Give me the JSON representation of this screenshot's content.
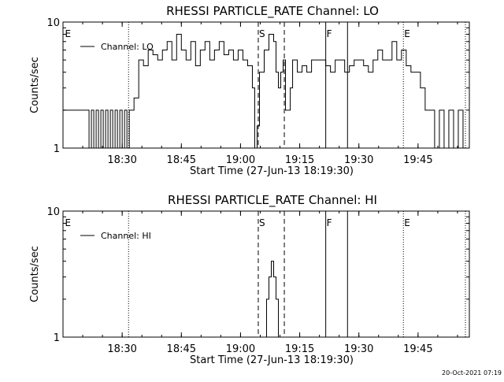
{
  "colors": {
    "background": "#ffffff",
    "foreground": "#000000"
  },
  "footer": {
    "timestamp": "20-Oct-2021 07:19"
  },
  "chart_data": [
    {
      "type": "line",
      "title": "RHESSI PARTICLE_RATE Channel: LO",
      "xlabel": "Start Time (27-Jun-13 18:19:30)",
      "ylabel": "Counts/sec",
      "yscale": "log",
      "ylim": [
        1,
        10
      ],
      "xlim_minutes": [
        18.25,
        19.9667
      ],
      "x_ticks": [
        {
          "value": 18.5,
          "label": "18:30"
        },
        {
          "value": 18.75,
          "label": "18:45"
        },
        {
          "value": 19.0,
          "label": "19:00"
        },
        {
          "value": 19.25,
          "label": "19:15"
        },
        {
          "value": 19.5,
          "label": "19:30"
        },
        {
          "value": 19.75,
          "label": "19:45"
        }
      ],
      "y_ticks": [
        {
          "value": 1,
          "label": "1"
        },
        {
          "value": 10,
          "label": "10"
        }
      ],
      "legend": {
        "text": "Channel: LO",
        "placement": "top-left"
      },
      "markers": [
        {
          "time": 18.255,
          "label": "E",
          "style": "none"
        },
        {
          "time": 18.527,
          "label": "",
          "style": "dotted"
        },
        {
          "time": 19.075,
          "label": "S",
          "style": "dashed"
        },
        {
          "time": 19.185,
          "label": "",
          "style": "dashed"
        },
        {
          "time": 19.36,
          "label": "F",
          "style": "solid"
        },
        {
          "time": 19.452,
          "label": "",
          "style": "solid"
        },
        {
          "time": 19.688,
          "label": "E",
          "style": "dotted"
        },
        {
          "time": 19.95,
          "label": "",
          "style": "dotted"
        }
      ],
      "series": [
        {
          "x": [
            18.25,
            18.35,
            18.36,
            18.37,
            18.38,
            18.39,
            18.4,
            18.41,
            18.42,
            18.43,
            18.44,
            18.45,
            18.46,
            18.47,
            18.48,
            18.49,
            18.5,
            18.51,
            18.52,
            18.53,
            18.54,
            18.55,
            18.57,
            18.59,
            18.61,
            18.63,
            18.65,
            18.67,
            18.69,
            18.71,
            18.73,
            18.75,
            18.77,
            18.79,
            18.81,
            18.83,
            18.85,
            18.87,
            18.89,
            18.91,
            18.93,
            18.95,
            18.97,
            18.99,
            19.01,
            19.03,
            19.05,
            19.06,
            19.07,
            19.08,
            19.1,
            19.12,
            19.14,
            19.15,
            19.16,
            19.17,
            19.18,
            19.19,
            19.2,
            19.21,
            19.22,
            19.24,
            19.26,
            19.28,
            19.3,
            19.32,
            19.34,
            19.36,
            19.38,
            19.4,
            19.42,
            19.44,
            19.46,
            19.48,
            19.5,
            19.52,
            19.54,
            19.56,
            19.58,
            19.6,
            19.62,
            19.64,
            19.66,
            19.68,
            19.7,
            19.72,
            19.74,
            19.76,
            19.78,
            19.8,
            19.82,
            19.84,
            19.86,
            19.88,
            19.9,
            19.92,
            19.94,
            19.95
          ],
          "y": [
            2,
            2,
            1,
            2,
            1,
            2,
            1,
            2,
            1,
            2,
            1,
            2,
            1,
            2,
            1,
            2,
            1,
            2,
            1,
            2,
            2,
            2.5,
            5,
            4.5,
            6,
            5.5,
            5,
            6,
            7,
            5,
            8,
            6,
            5,
            7,
            4.5,
            6,
            7,
            5,
            6,
            7,
            5.5,
            6,
            5,
            6,
            5,
            4.5,
            3,
            1,
            1.5,
            4,
            6,
            8,
            7,
            4,
            3,
            4,
            5,
            2,
            2,
            3,
            5,
            4,
            4.5,
            4,
            5,
            5,
            5,
            4.5,
            4,
            5,
            5,
            4,
            4.5,
            5,
            5,
            4.5,
            4,
            5,
            6,
            5,
            5,
            7,
            5,
            6,
            4.5,
            4,
            4,
            3,
            2,
            2,
            1,
            2,
            1,
            2,
            1,
            2,
            1,
            1
          ]
        }
      ]
    },
    {
      "type": "line",
      "title": "RHESSI PARTICLE_RATE Channel: HI",
      "xlabel": "Start Time (27-Jun-13 18:19:30)",
      "ylabel": "Counts/sec",
      "yscale": "log",
      "ylim": [
        1,
        10
      ],
      "xlim_minutes": [
        18.25,
        19.9667
      ],
      "x_ticks": [
        {
          "value": 18.5,
          "label": "18:30"
        },
        {
          "value": 18.75,
          "label": "18:45"
        },
        {
          "value": 19.0,
          "label": "19:00"
        },
        {
          "value": 19.25,
          "label": "19:15"
        },
        {
          "value": 19.5,
          "label": "19:30"
        },
        {
          "value": 19.75,
          "label": "19:45"
        }
      ],
      "y_ticks": [
        {
          "value": 1,
          "label": "1"
        },
        {
          "value": 10,
          "label": "10"
        }
      ],
      "legend": {
        "text": "Channel: HI",
        "placement": "top-left"
      },
      "markers": [
        {
          "time": 18.255,
          "label": "E",
          "style": "none"
        },
        {
          "time": 18.527,
          "label": "",
          "style": "dotted"
        },
        {
          "time": 19.075,
          "label": "S",
          "style": "dashed"
        },
        {
          "time": 19.185,
          "label": "",
          "style": "dashed"
        },
        {
          "time": 19.36,
          "label": "F",
          "style": "solid"
        },
        {
          "time": 19.452,
          "label": "",
          "style": "solid"
        },
        {
          "time": 19.688,
          "label": "E",
          "style": "dotted"
        },
        {
          "time": 19.95,
          "label": "",
          "style": "dotted"
        }
      ],
      "series": [
        {
          "x": [
            19.1,
            19.11,
            19.12,
            19.13,
            19.14,
            19.15,
            19.16
          ],
          "y": [
            1,
            2,
            3,
            4,
            3,
            2,
            1
          ]
        }
      ]
    }
  ]
}
